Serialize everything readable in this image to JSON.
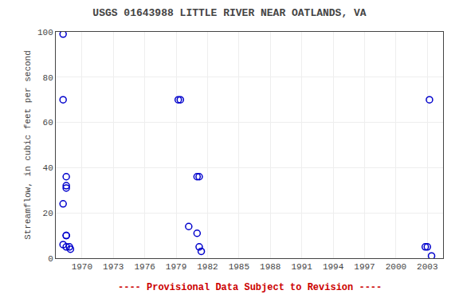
{
  "chart_data": {
    "type": "scatter",
    "title": "USGS 01643988 LITTLE RIVER NEAR OATLANDS, VA",
    "ylabel": "Streamflow, in cubic feet per second",
    "annotations": [
      {
        "text": "---- Provisional Data Subject to Revision ----",
        "color": "#cc0000"
      }
    ],
    "x": [
      1968.2,
      1968.2,
      1968.5,
      1968.5,
      1968.5,
      1968.2,
      1968.5,
      1968.5,
      1968.2,
      1968.5,
      1968.8,
      1968.9,
      1979.2,
      1979.4,
      1980.2,
      1981.0,
      1981.2,
      1981.0,
      1981.2,
      1981.4,
      2002.8,
      2003.0,
      2003.2,
      2003.4
    ],
    "values": [
      99,
      70,
      36,
      32,
      31,
      24,
      10,
      10,
      6,
      5,
      5,
      4,
      70,
      70,
      14,
      36,
      36,
      11,
      5,
      3,
      5,
      5,
      70,
      1
    ],
    "color": "#0000cc",
    "marker": "circle-open",
    "xlim": [
      1967.5,
      2004.5
    ],
    "xticks": [
      1970,
      1973,
      1976,
      1979,
      1982,
      1985,
      1988,
      1991,
      1994,
      1997,
      2000,
      2003
    ],
    "ylim": [
      0,
      100
    ],
    "yticks": [
      0,
      20,
      40,
      60,
      80,
      100
    ],
    "grid": true
  }
}
